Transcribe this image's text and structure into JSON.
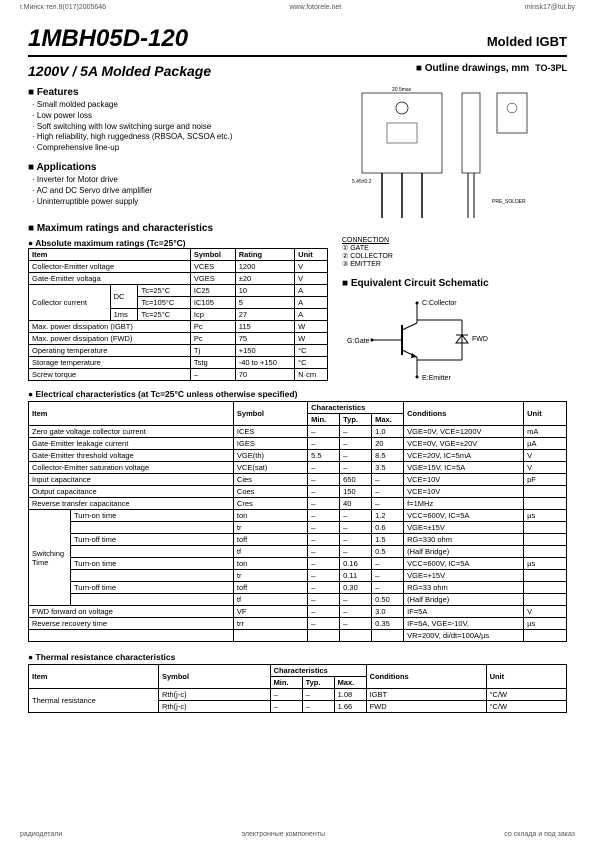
{
  "header": {
    "left": "г.Минск тел.8(017)2005646",
    "center": "www.fotorele.net",
    "right": "minsk17@tut.by"
  },
  "title": "1MBH05D-120",
  "title_right": "Molded IGBT",
  "subtitle_left": "1200V / 5A   Molded Package",
  "subtitle_right": "Outline drawings, mm",
  "package_type": "TO-3PL",
  "features_h": "Features",
  "features": [
    "Small molded package",
    "Low power loss",
    "Soft switching with low switching surge and noise",
    "High reliability, high ruggedness (RBSOA, SCSOA etc.)",
    "Comprehensive line-up"
  ],
  "applications_h": "Applications",
  "applications": [
    "Inverter for  Motor drive",
    "AC and DC Servo drive amplifier",
    "Uninterruptible power supply"
  ],
  "max_ratings_h": "Maximum ratings and characteristics",
  "abs_max_h": "Absolute maximum ratings (Tc=25°C)",
  "max_table": {
    "headers": [
      "Item",
      "Symbol",
      "Rating",
      "Unit"
    ],
    "rows": [
      [
        "Collector-Emitter voltage",
        "VCES",
        "1200",
        "V"
      ],
      [
        "Gate-Emitter voltaga",
        "VGES",
        "±20",
        "V"
      ]
    ],
    "collector_current": {
      "label": "Collector current",
      "sub": [
        [
          "DC",
          "Tc=25°C",
          "IC25",
          "10",
          "A"
        ],
        [
          "",
          "Tc=105°C",
          "IC105",
          "5",
          "A"
        ],
        [
          "1ms",
          "Tc=25°C",
          "Icp",
          "27",
          "A"
        ]
      ]
    },
    "rows2": [
      [
        "Max. power dissipation (IGBT)",
        "Pc",
        "115",
        "W"
      ],
      [
        "Max. power dissipation (FWD)",
        "Pc",
        "75",
        "W"
      ],
      [
        "Operating temperature",
        "Tj",
        "+150",
        "°C"
      ],
      [
        "Storage temperature",
        "Tstg",
        "-40 to +150",
        "°C"
      ],
      [
        "Screw torque",
        "–",
        "70",
        "N·cm"
      ]
    ]
  },
  "equiv_h": "Equivalent Circuit Schematic",
  "circuit_labels": {
    "c": "C:Collector",
    "g": "G:Gate",
    "e": "E:Emitter",
    "fwd": "FWD"
  },
  "connection_h": "CONNECTION",
  "connection": [
    "① GATE",
    "② COLLECTOR",
    "③ EMITTER"
  ],
  "elec_h": "Electrical characteristics (at Tc=25°C unless otherwise specified)",
  "elec_table": {
    "headers": [
      "Item",
      "Symbol",
      "Min.",
      "Typ.",
      "Max.",
      "Conditions",
      "Unit"
    ],
    "rows": [
      [
        "Zero gate voltage collector current",
        "ICES",
        "–",
        "–",
        "1.0",
        "VGE=0V,  VCE=1200V",
        "mA"
      ],
      [
        "Gate-Emitter leakage current",
        "IGES",
        "–",
        "–",
        "20",
        "VCE=0V,  VGE=±20V",
        "µA"
      ],
      [
        "Gate-Emitter threshold voltage",
        "VGE(th)",
        "5.5",
        "–",
        "8.5",
        "VCE=20V,  IC=5mA",
        "V"
      ],
      [
        "Collector-Emitter saturation voltage",
        "VCE(sat)",
        "–",
        "–",
        "3.5",
        "VGE=15V, IC=5A",
        "V"
      ],
      [
        "Input capacitance",
        "Cies",
        "–",
        "650",
        "–",
        "VCE=10V",
        "pF"
      ],
      [
        "Output capacitance",
        "Coes",
        "–",
        "150",
        "–",
        "VCE=10V",
        ""
      ],
      [
        "Reverse transfer capacitance",
        "Cres",
        "–",
        "40",
        "–",
        "f=1MHz",
        ""
      ]
    ],
    "switching": {
      "label": "Switching Time",
      "rows": [
        [
          "Turn-on time",
          "ton",
          "–",
          "–",
          "1.2",
          "VCC=600V, IC=5A",
          "µs"
        ],
        [
          "",
          "tr",
          "–",
          "–",
          "0.6",
          "VGE=±15V",
          ""
        ],
        [
          "Turn-off time",
          "toff",
          "–",
          "–",
          "1.5",
          "RG=330 ohm",
          ""
        ],
        [
          "",
          "tf",
          "–",
          "–",
          "0.5",
          "(Half Bridge)",
          ""
        ],
        [
          "Turn-on time",
          "ton",
          "–",
          "0.16",
          "–",
          "VCC=600V, IC=5A",
          "µs"
        ],
        [
          "",
          "tr",
          "–",
          "0.11",
          "–",
          "VGE=+15V",
          ""
        ],
        [
          "Turn-off time",
          "toff",
          "–",
          "0.30",
          "–",
          "RG=33 ohm",
          ""
        ],
        [
          "",
          "tf",
          "–",
          "–",
          "0.50",
          "(Half Bridge)",
          ""
        ]
      ]
    },
    "rows2": [
      [
        "FWD forward on voltage",
        "VF",
        "–",
        "–",
        "3.0",
        "IF=5A",
        "V"
      ],
      [
        "Reverse recovery time",
        "trr",
        "–",
        "–",
        "0.35",
        "IF=5A, VGE=-10V,",
        "µs"
      ],
      [
        "",
        "",
        "",
        "",
        "",
        "VR=200V, di/dt=100A/µs",
        ""
      ]
    ]
  },
  "thermal_h": "Thermal resistance characteristics",
  "thermal_table": {
    "headers": [
      "Item",
      "Symbol",
      "Min.",
      "Typ.",
      "Max.",
      "Conditions",
      "Unit"
    ],
    "rows": [
      [
        "Thermal resistance",
        "Rth(j-c)",
        "–",
        "–",
        "1.08",
        "IGBT",
        "°C/W"
      ],
      [
        "",
        "Rth(j-c)",
        "–",
        "–",
        "1.66",
        "FWD",
        "°C/W"
      ]
    ]
  },
  "footer": {
    "left": "радиодетали",
    "center": "электронные компоненты",
    "right": "со склада и под заказ"
  },
  "colors": {
    "border": "#000000",
    "text": "#000000",
    "bg": "#ffffff"
  }
}
